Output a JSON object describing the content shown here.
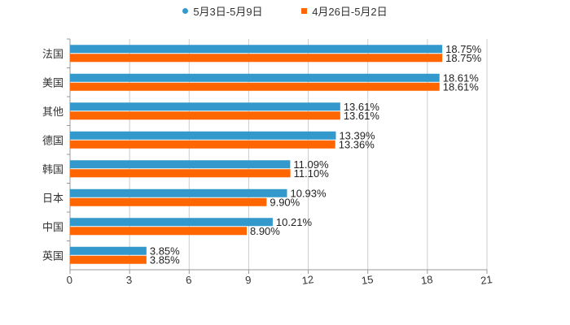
{
  "chart_data": {
    "type": "bar",
    "orientation": "horizontal",
    "categories": [
      "法国",
      "美国",
      "其他",
      "德国",
      "韩国",
      "日本",
      "中国",
      "英国"
    ],
    "series": [
      {
        "name": "5月3日-5月9日",
        "color": "#3399cc",
        "values": [
          18.75,
          18.61,
          13.61,
          13.39,
          11.09,
          10.93,
          10.21,
          3.85
        ],
        "labels": [
          "18.75%",
          "18.61%",
          "13.61%",
          "13.39%",
          "11.09%",
          "10.93%",
          "10.21%",
          "3.85%"
        ]
      },
      {
        "name": "4月26日-5月2日",
        "color": "#ff6600",
        "values": [
          18.75,
          18.61,
          13.61,
          13.36,
          11.1,
          9.9,
          8.9,
          3.85
        ],
        "labels": [
          "18.75%",
          "18.61%",
          "13.61%",
          "13.36%",
          "11.10%",
          "9.90%",
          "8.90%",
          "3.85%"
        ]
      }
    ],
    "xlim": [
      0,
      21
    ],
    "xticks": [
      "0",
      "3",
      "6",
      "9",
      "12",
      "15",
      "18",
      "21"
    ],
    "grid": true,
    "legend_position": "top-center"
  }
}
